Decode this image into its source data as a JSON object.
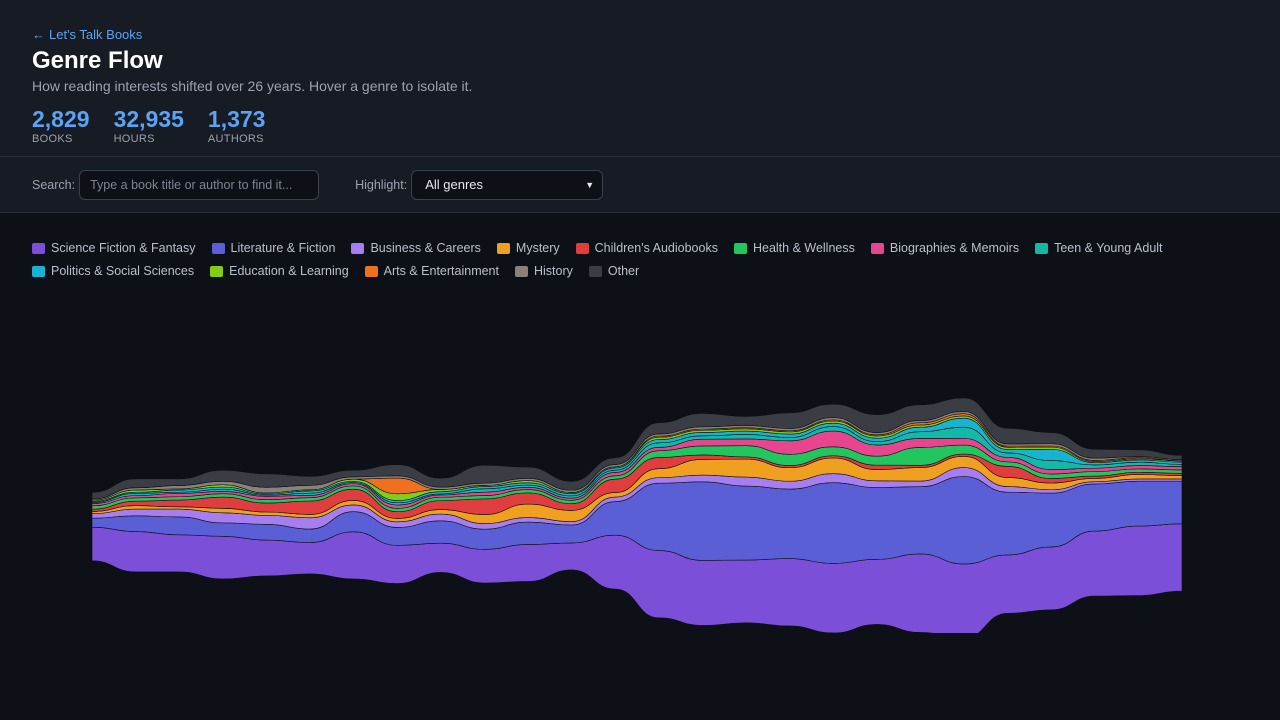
{
  "header": {
    "back_label": "Let's Talk Books",
    "back_icon": "arrow-left-icon",
    "title": "Genre Flow",
    "subtitle": "How reading interests shifted over 26 years. Hover a genre to isolate it.",
    "stats": [
      {
        "value": "2,829",
        "label": "BOOKS"
      },
      {
        "value": "32,935",
        "label": "HOURS"
      },
      {
        "value": "1,373",
        "label": "AUTHORS"
      }
    ]
  },
  "controls": {
    "search_label": "Search:",
    "search_placeholder": "Type a book title or author to find it...",
    "search_value": "",
    "highlight_label": "Highlight:",
    "highlight_value": "All genres"
  },
  "legend": [
    {
      "name": "Science Fiction & Fantasy",
      "color": "#7c4fd8"
    },
    {
      "name": "Literature & Fiction",
      "color": "#5a5fd6"
    },
    {
      "name": "Business & Careers",
      "color": "#a67ef0"
    },
    {
      "name": "Mystery",
      "color": "#f0a020"
    },
    {
      "name": "Children's Audiobooks",
      "color": "#e03e3e"
    },
    {
      "name": "Health & Wellness",
      "color": "#22c55e"
    },
    {
      "name": "Biographies & Memoirs",
      "color": "#e8458f"
    },
    {
      "name": "Teen & Young Adult",
      "color": "#14b8a6"
    },
    {
      "name": "Politics & Social Sciences",
      "color": "#17b3d0"
    },
    {
      "name": "Education & Learning",
      "color": "#84cc16"
    },
    {
      "name": "Arts & Entertainment",
      "color": "#f07020"
    },
    {
      "name": "History",
      "color": "#8a817c"
    },
    {
      "name": "Other",
      "color": "#3a3d44"
    }
  ],
  "chart_data": {
    "type": "area",
    "stacked": true,
    "offset": "wiggle",
    "grid": false,
    "x": [
      1,
      2,
      3,
      4,
      5,
      6,
      7,
      8,
      9,
      10,
      11,
      12,
      13,
      14,
      15,
      16,
      17,
      18,
      19,
      20,
      21,
      22,
      23,
      24,
      25,
      26
    ],
    "series": [
      {
        "name": "Science Fiction & Fantasy",
        "values": [
          30,
          36,
          33,
          38,
          32,
          28,
          42,
          34,
          26,
          30,
          33,
          24,
          48,
          60,
          58,
          56,
          60,
          62,
          58,
          70,
          66,
          52,
          56,
          58,
          62,
          60
        ]
      },
      {
        "name": "Literature & Fiction",
        "values": [
          8,
          14,
          16,
          12,
          14,
          12,
          18,
          16,
          20,
          18,
          20,
          16,
          30,
          60,
          70,
          66,
          62,
          72,
          64,
          60,
          78,
          56,
          48,
          42,
          40,
          38
        ]
      },
      {
        "name": "Business & Careers",
        "values": [
          4,
          6,
          7,
          9,
          8,
          10,
          6,
          5,
          6,
          5,
          4,
          3,
          4,
          5,
          6,
          8,
          7,
          8,
          6,
          5,
          8,
          5,
          3,
          2,
          2,
          2
        ]
      },
      {
        "name": "Mystery",
        "values": [
          2,
          3,
          2,
          4,
          3,
          3,
          4,
          3,
          4,
          8,
          12,
          10,
          4,
          8,
          14,
          16,
          12,
          14,
          10,
          12,
          10,
          8,
          6,
          3,
          4,
          3
        ]
      },
      {
        "name": "Children's Audiobooks",
        "values": [
          2,
          4,
          6,
          10,
          8,
          12,
          10,
          6,
          8,
          14,
          10,
          6,
          12,
          10,
          4,
          2,
          2,
          2,
          4,
          2,
          2,
          10,
          4,
          2,
          2,
          2
        ]
      },
      {
        "name": "Health & Wellness",
        "values": [
          3,
          3,
          3,
          3,
          3,
          3,
          3,
          3,
          3,
          3,
          3,
          3,
          3,
          6,
          8,
          10,
          10,
          8,
          8,
          16,
          8,
          4,
          4,
          4,
          3,
          3
        ]
      },
      {
        "name": "Biographies & Memoirs",
        "values": [
          2,
          2,
          3,
          2,
          3,
          2,
          2,
          3,
          2,
          3,
          2,
          2,
          3,
          3,
          6,
          6,
          12,
          14,
          10,
          8,
          6,
          4,
          4,
          3,
          3,
          3
        ]
      },
      {
        "name": "Teen & Young Adult",
        "values": [
          1,
          2,
          1,
          2,
          1,
          2,
          1,
          2,
          1,
          3,
          2,
          2,
          2,
          4,
          3,
          4,
          3,
          4,
          3,
          6,
          10,
          4,
          8,
          3,
          3,
          2
        ]
      },
      {
        "name": "Politics & Social Sciences",
        "values": [
          1,
          1,
          2,
          2,
          1,
          2,
          1,
          2,
          2,
          2,
          2,
          2,
          2,
          3,
          3,
          3,
          3,
          3,
          3,
          4,
          8,
          3,
          10,
          2,
          2,
          2
        ]
      },
      {
        "name": "Education & Learning",
        "values": [
          1,
          2,
          1,
          2,
          1,
          1,
          2,
          6,
          2,
          1,
          2,
          1,
          1,
          2,
          2,
          2,
          2,
          2,
          2,
          2,
          2,
          2,
          2,
          1,
          1,
          1
        ]
      },
      {
        "name": "Arts & Entertainment",
        "values": [
          0,
          0,
          0,
          0,
          0,
          0,
          0,
          14,
          0,
          0,
          0,
          0,
          0,
          1,
          1,
          1,
          1,
          1,
          1,
          2,
          2,
          1,
          1,
          1,
          1,
          0
        ]
      },
      {
        "name": "History",
        "values": [
          1,
          2,
          3,
          3,
          5,
          4,
          2,
          2,
          2,
          2,
          2,
          2,
          2,
          2,
          2,
          2,
          2,
          2,
          2,
          2,
          2,
          2,
          2,
          2,
          1,
          1
        ]
      },
      {
        "name": "Other",
        "values": [
          6,
          8,
          6,
          10,
          12,
          8,
          6,
          10,
          8,
          16,
          10,
          8,
          6,
          10,
          12,
          8,
          14,
          12,
          16,
          14,
          12,
          14,
          10,
          8,
          6,
          4
        ]
      }
    ]
  }
}
